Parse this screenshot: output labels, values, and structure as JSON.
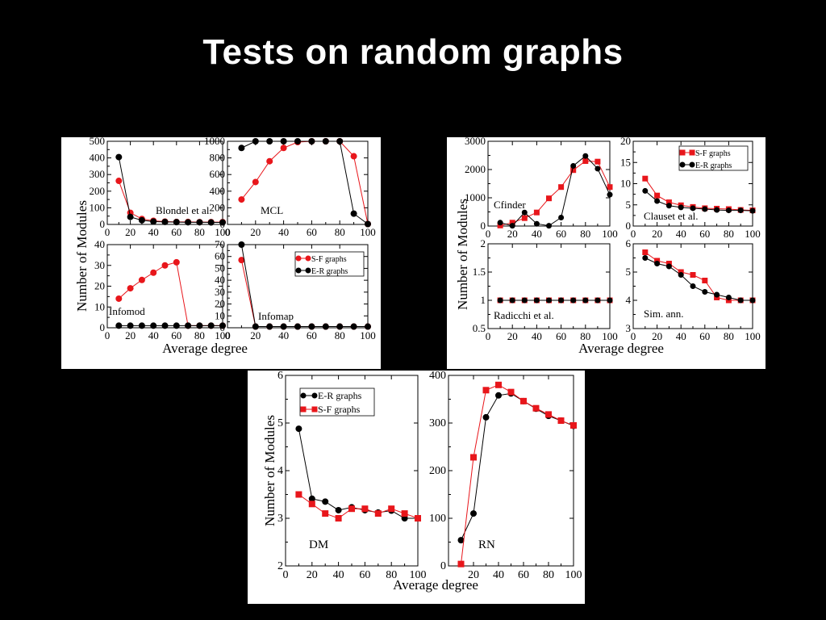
{
  "title": "Tests on random graphs",
  "colors": {
    "sf": "#e8161b",
    "er": "#000000"
  },
  "chart_data": [
    {
      "type": "line",
      "label": "Blondel et al.",
      "x": [
        10,
        20,
        30,
        40,
        50,
        60,
        70,
        80,
        90,
        100
      ],
      "ylim": [
        0,
        500
      ],
      "yticks": [
        0,
        100,
        200,
        300,
        400,
        500
      ],
      "xticks": [
        0,
        20,
        40,
        60,
        80,
        100
      ],
      "series": [
        {
          "name": "S-F graphs",
          "marker": "circle",
          "x": [
            10,
            20,
            30,
            40,
            50,
            60,
            70,
            80,
            90,
            100
          ],
          "y": [
            262,
            70,
            33,
            22,
            17,
            15,
            15,
            14,
            14,
            14
          ]
        },
        {
          "name": "E-R graphs",
          "marker": "circle",
          "x": [
            10,
            20,
            30,
            40,
            50,
            60,
            70,
            80,
            90,
            100
          ],
          "y": [
            405,
            45,
            25,
            17,
            15,
            14,
            13,
            13,
            12,
            12
          ]
        }
      ]
    },
    {
      "type": "line",
      "label": "MCL",
      "ylim": [
        0,
        1000
      ],
      "yticks": [
        0,
        200,
        400,
        600,
        800,
        1000
      ],
      "xticks": [
        0,
        20,
        40,
        60,
        80,
        100
      ],
      "series": [
        {
          "name": "S-F graphs",
          "marker": "circle",
          "x": [
            10,
            20,
            30,
            40,
            50,
            60,
            70,
            80,
            90,
            100
          ],
          "y": [
            300,
            510,
            760,
            920,
            990,
            1000,
            1000,
            1000,
            820,
            5
          ]
        },
        {
          "name": "E-R graphs",
          "marker": "circle",
          "x": [
            10,
            20,
            30,
            40,
            50,
            60,
            70,
            80,
            90,
            100
          ],
          "y": [
            920,
            1000,
            1000,
            1000,
            1000,
            1000,
            1000,
            1000,
            130,
            5
          ]
        }
      ]
    },
    {
      "type": "line",
      "label": "Infomod",
      "ylim": [
        0,
        40
      ],
      "yticks": [
        0,
        10,
        20,
        30,
        40
      ],
      "xticks": [
        0,
        20,
        40,
        60,
        80,
        100
      ],
      "series": [
        {
          "name": "S-F graphs",
          "marker": "circle",
          "x": [
            10,
            20,
            30,
            40,
            50,
            60,
            70,
            80,
            90,
            100
          ],
          "y": [
            14,
            19,
            23,
            26.5,
            30,
            31.5,
            1,
            1,
            1,
            1
          ]
        },
        {
          "name": "E-R graphs",
          "marker": "circle",
          "x": [
            10,
            20,
            30,
            40,
            50,
            60,
            70,
            80,
            90,
            100
          ],
          "y": [
            1,
            1,
            1,
            1,
            1,
            1,
            1,
            1,
            1,
            1
          ]
        }
      ]
    },
    {
      "type": "line",
      "label": "Infomap",
      "ylim": [
        0,
        70
      ],
      "yticks": [
        0,
        10,
        20,
        30,
        40,
        50,
        60,
        70
      ],
      "xticks": [
        0,
        20,
        40,
        60,
        80,
        100
      ],
      "legend": {
        "position": "top-right",
        "entries": [
          "S-F graphs",
          "E-R graphs"
        ]
      },
      "series": [
        {
          "name": "S-F graphs",
          "marker": "circle",
          "x": [
            10,
            20,
            30,
            40,
            50,
            60,
            70,
            80,
            90,
            100
          ],
          "y": [
            57,
            1,
            1,
            1,
            1,
            1,
            1,
            1,
            1,
            1
          ]
        },
        {
          "name": "E-R graphs",
          "marker": "circle",
          "x": [
            10,
            20,
            30,
            40,
            50,
            60,
            70,
            80,
            90,
            100
          ],
          "y": [
            70,
            1,
            1,
            1,
            1,
            1,
            1,
            1,
            1,
            1
          ]
        }
      ]
    },
    {
      "type": "line",
      "label": "Cfinder",
      "ylim": [
        0,
        3000
      ],
      "yticks": [
        0,
        1000,
        2000,
        3000
      ],
      "xticks": [
        0,
        20,
        40,
        60,
        80,
        100
      ],
      "series": [
        {
          "name": "S-F graphs",
          "marker": "square",
          "x": [
            10,
            20,
            30,
            40,
            50,
            60,
            70,
            80,
            90,
            100
          ],
          "y": [
            20,
            120,
            280,
            480,
            980,
            1380,
            1980,
            2300,
            2280,
            1380
          ]
        },
        {
          "name": "E-R graphs",
          "marker": "circle",
          "x": [
            10,
            20,
            30,
            40,
            50,
            60,
            70,
            80,
            90,
            100
          ],
          "y": [
            120,
            10,
            480,
            80,
            10,
            300,
            2130,
            2480,
            2030,
            1110
          ]
        }
      ]
    },
    {
      "type": "line",
      "label": "Clauset et al.",
      "ylim": [
        0,
        20
      ],
      "yticks": [
        0,
        5,
        10,
        15,
        20
      ],
      "xticks": [
        0,
        20,
        40,
        60,
        80,
        100
      ],
      "legend": {
        "position": "top-right",
        "entries": [
          "S-F graphs",
          "E-R graphs"
        ]
      },
      "series": [
        {
          "name": "S-F graphs",
          "marker": "square",
          "x": [
            10,
            20,
            30,
            40,
            50,
            60,
            70,
            80,
            90,
            100
          ],
          "y": [
            11.2,
            7.2,
            5.6,
            4.9,
            4.5,
            4.2,
            4.1,
            4.0,
            3.8,
            3.7
          ]
        },
        {
          "name": "E-R graphs",
          "marker": "circle",
          "x": [
            10,
            20,
            30,
            40,
            50,
            60,
            70,
            80,
            90,
            100
          ],
          "y": [
            8.3,
            5.9,
            4.8,
            4.4,
            4.2,
            4.0,
            3.8,
            3.7,
            3.7,
            3.6
          ]
        }
      ]
    },
    {
      "type": "line",
      "label": "Radicchi et al.",
      "ylim": [
        0.5,
        2
      ],
      "yticks": [
        0.5,
        1,
        1.5,
        2
      ],
      "xticks": [
        0,
        20,
        40,
        60,
        80,
        100
      ],
      "series": [
        {
          "name": "S-F graphs",
          "marker": "square",
          "x": [
            10,
            20,
            30,
            40,
            50,
            60,
            70,
            80,
            90,
            100
          ],
          "y": [
            1,
            1,
            1,
            1,
            1,
            1,
            1,
            1,
            1,
            1
          ]
        },
        {
          "name": "E-R graphs",
          "marker": "circle",
          "x": [
            10,
            20,
            30,
            40,
            50,
            60,
            70,
            80,
            90,
            100
          ],
          "y": [
            1,
            1,
            1,
            1,
            1,
            1,
            1,
            1,
            1,
            1
          ]
        }
      ]
    },
    {
      "type": "line",
      "label": "Sim. ann.",
      "ylim": [
        3,
        6
      ],
      "yticks": [
        3,
        4,
        5,
        6
      ],
      "xticks": [
        0,
        20,
        40,
        60,
        80,
        100
      ],
      "series": [
        {
          "name": "S-F graphs",
          "marker": "square",
          "x": [
            10,
            20,
            30,
            40,
            50,
            60,
            70,
            80,
            90,
            100
          ],
          "y": [
            5.7,
            5.4,
            5.3,
            5.0,
            4.9,
            4.7,
            4.1,
            4.0,
            4.0,
            4.0
          ]
        },
        {
          "name": "E-R graphs",
          "marker": "circle",
          "x": [
            10,
            20,
            30,
            40,
            50,
            60,
            70,
            80,
            90,
            100
          ],
          "y": [
            5.5,
            5.3,
            5.2,
            4.9,
            4.5,
            4.3,
            4.2,
            4.1,
            4.0,
            4.0
          ]
        }
      ]
    },
    {
      "type": "line",
      "label": "DM",
      "ylim": [
        2,
        6
      ],
      "yticks": [
        2,
        3,
        4,
        5,
        6
      ],
      "xticks": [
        0,
        20,
        40,
        60,
        80,
        100
      ],
      "legend": {
        "position": "top-left",
        "entries": [
          "E-R graphs",
          "S-F graphs"
        ]
      },
      "series": [
        {
          "name": "E-R graphs",
          "marker": "circle",
          "x": [
            10,
            20,
            30,
            40,
            50,
            60,
            70,
            80,
            90,
            100
          ],
          "y": [
            4.88,
            3.41,
            3.35,
            3.17,
            3.23,
            3.17,
            3.12,
            3.16,
            3.0,
            3.0
          ]
        },
        {
          "name": "S-F graphs",
          "marker": "square",
          "x": [
            10,
            20,
            30,
            40,
            50,
            60,
            70,
            80,
            90,
            100
          ],
          "y": [
            3.5,
            3.3,
            3.1,
            3.0,
            3.2,
            3.2,
            3.1,
            3.2,
            3.1,
            3.0
          ]
        }
      ]
    },
    {
      "type": "line",
      "label": "RN",
      "ylim": [
        0,
        400
      ],
      "yticks": [
        0,
        100,
        200,
        300,
        400
      ],
      "xticks": [
        20,
        40,
        60,
        80,
        100
      ],
      "series": [
        {
          "name": "E-R graphs",
          "marker": "circle",
          "x": [
            10,
            20,
            30,
            40,
            50,
            60,
            70,
            80,
            90,
            100
          ],
          "y": [
            54,
            110,
            312,
            358,
            362,
            346,
            330,
            315,
            305,
            294
          ]
        },
        {
          "name": "S-F graphs",
          "marker": "square",
          "x": [
            10,
            20,
            30,
            40,
            50,
            60,
            70,
            80,
            90,
            100
          ],
          "y": [
            4,
            228,
            369,
            380,
            365,
            346,
            331,
            318,
            305,
            295
          ]
        }
      ]
    }
  ],
  "axis_labels": {
    "panel1": {
      "xlabel": "Average degree",
      "ylabel": "Number of Modules"
    },
    "panel2": {
      "xlabel": "Average degree",
      "ylabel": "Number of Modules"
    },
    "panel3": {
      "xlabel": "Average degree",
      "ylabel": "Number of Modules"
    }
  }
}
